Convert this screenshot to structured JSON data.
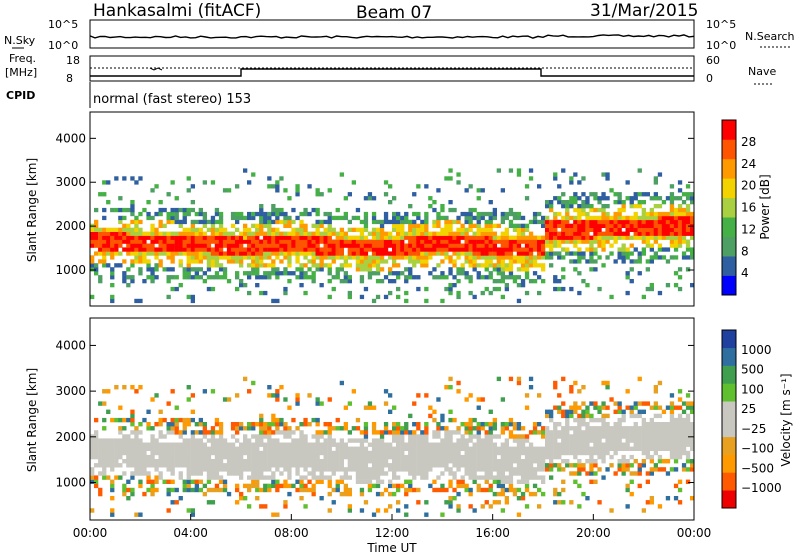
{
  "header": {
    "station": "Hankasalmi (fitACF)",
    "beam": "Beam 07",
    "date": "31/Mar/2015"
  },
  "panels": {
    "noise": {
      "left_label": "N.Sky",
      "right_label": "N.Search",
      "left_ticks": [
        "10^5",
        "10^0"
      ],
      "right_ticks": [
        "10^5",
        "10^0"
      ]
    },
    "freq": {
      "left_label_1": "Freq.",
      "left_label_2": "[MHz]",
      "left_ticks": [
        "18",
        "8"
      ],
      "right_ticks": [
        "60",
        "0"
      ],
      "right_label": "Nave"
    },
    "cpid": {
      "label": "CPID",
      "text": "normal (fast stereo) 153"
    }
  },
  "colors": {
    "power": [
      "#0000ff",
      "#2f5fa0",
      "#4d9f63",
      "#45b045",
      "#a8d040",
      "#f2d300",
      "#ff9900",
      "#ff5500",
      "#ff0000"
    ],
    "velocity": [
      "#ee0000",
      "#ff5a00",
      "#ff9900",
      "#e7a020",
      "#c8c8c0",
      "#c8c8c0",
      "#5fbf2f",
      "#3f9f4f",
      "#2f6fa0",
      "#2040a0"
    ]
  },
  "chart_data": [
    {
      "type": "heatmap",
      "title": "Power",
      "ylabel": "Slant Range [km]",
      "xlabel": "Time UT",
      "x_ticks": [
        "00:00",
        "04:00",
        "08:00",
        "12:00",
        "16:00",
        "20:00",
        "00:00"
      ],
      "y_ticks": [
        "1000",
        "2000",
        "3000",
        "4000"
      ],
      "ylim": [
        180,
        4600
      ],
      "colorbar_label": "Power [dB]",
      "colorbar_ticks": [
        "4",
        "8",
        "12",
        "16",
        "20",
        "24",
        "28"
      ]
    },
    {
      "type": "heatmap",
      "title": "Velocity",
      "ylabel": "Slant Range [km]",
      "xlabel": "Time UT",
      "x_ticks": [
        "00:00",
        "04:00",
        "08:00",
        "12:00",
        "16:00",
        "20:00",
        "00:00"
      ],
      "y_ticks": [
        "1000",
        "2000",
        "3000",
        "4000"
      ],
      "ylim": [
        180,
        4600
      ],
      "colorbar_label": "Velocity [m s⁻¹]",
      "colorbar_ticks": [
        "1000",
        "500",
        "100",
        "25",
        "−25",
        "−100",
        "−500",
        "−1000"
      ]
    }
  ]
}
